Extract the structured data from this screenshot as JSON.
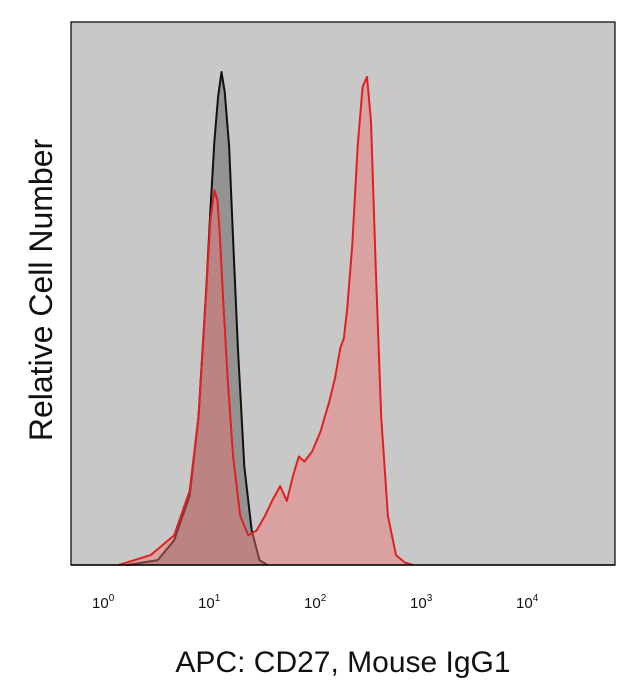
{
  "chart_data": {
    "type": "area",
    "xscale": "log",
    "xlim": [
      0.4,
      100000
    ],
    "ylim": [
      0,
      1.0
    ],
    "x_ticks": [
      {
        "base": "10",
        "exp": "0",
        "value": 1
      },
      {
        "base": "10",
        "exp": "1",
        "value": 10
      },
      {
        "base": "10",
        "exp": "2",
        "value": 100
      },
      {
        "base": "10",
        "exp": "3",
        "value": 1000
      },
      {
        "base": "10",
        "exp": "4",
        "value": 10000
      }
    ],
    "xlabel": "APC: CD27, Mouse IgG1",
    "ylabel": "Relative Cell Number",
    "plot_background": "#c8c8c8",
    "grid": false,
    "series": [
      {
        "stroke": "#111111",
        "fill": "#8a8a8a",
        "fill_opacity": 0.85,
        "x": [
          1.8,
          3.5,
          5,
          7,
          8.5,
          10,
          11,
          12,
          13,
          14,
          15,
          16.5,
          18,
          20,
          23,
          27,
          32,
          38
        ],
        "y": [
          0,
          0.01,
          0.05,
          0.14,
          0.3,
          0.55,
          0.72,
          0.86,
          0.95,
          1.0,
          0.96,
          0.85,
          0.66,
          0.44,
          0.2,
          0.07,
          0.01,
          0
        ]
      },
      {
        "stroke": "#e02020",
        "fill": "#f07070",
        "fill_opacity": 0.45,
        "x": [
          1.5,
          3,
          5,
          7,
          8.5,
          10,
          11,
          12,
          12.8,
          13.5,
          14.5,
          16,
          18,
          21,
          25,
          30,
          36,
          42,
          50,
          58,
          66,
          75,
          85,
          100,
          120,
          145,
          165,
          185,
          200,
          215,
          240,
          270,
          300,
          330,
          360,
          400,
          450,
          520,
          620,
          750,
          900
        ],
        "y": [
          0,
          0.02,
          0.06,
          0.15,
          0.3,
          0.55,
          0.7,
          0.76,
          0.74,
          0.67,
          0.54,
          0.38,
          0.22,
          0.1,
          0.06,
          0.07,
          0.1,
          0.13,
          0.16,
          0.13,
          0.18,
          0.22,
          0.21,
          0.23,
          0.27,
          0.33,
          0.38,
          0.44,
          0.46,
          0.52,
          0.65,
          0.85,
          0.97,
          0.99,
          0.9,
          0.6,
          0.3,
          0.1,
          0.02,
          0.005,
          0
        ]
      }
    ]
  }
}
